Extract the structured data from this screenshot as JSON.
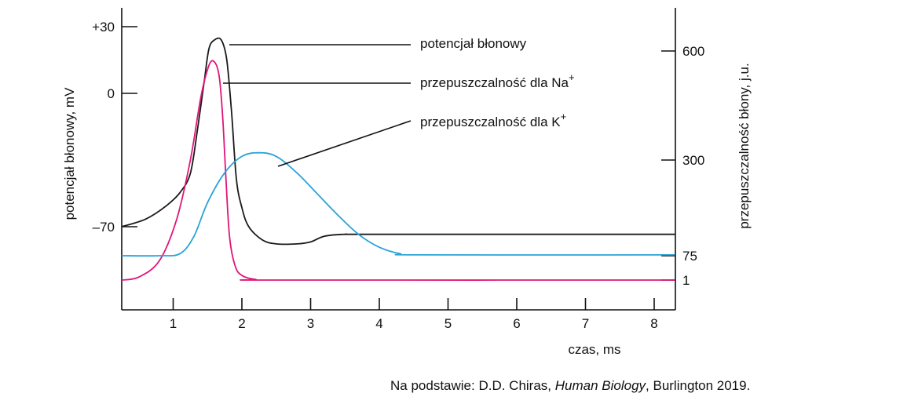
{
  "chart_data": {
    "type": "line",
    "xlabel": "czas, ms",
    "ylabel_left": "potencjał błonowy, mV",
    "ylabel_right": "przepuszczalność błony, j.u.",
    "x_ticks": [
      "1",
      "2",
      "3",
      "4",
      "5",
      "6",
      "7",
      "8"
    ],
    "y_left_ticks": [
      {
        "value": 30,
        "label": "+30"
      },
      {
        "value": 0,
        "label": "0"
      },
      {
        "value": -70,
        "label": "–70"
      }
    ],
    "y_right_ticks": [
      "600",
      "300",
      "75",
      "1"
    ],
    "series": [
      {
        "name": "potencjał błonowy",
        "color": "#1a1a1a",
        "axis": "left",
        "label_text": "potencjał błonowy",
        "points": [
          [
            0.25,
            -70
          ],
          [
            0.6,
            -66
          ],
          [
            0.9,
            -59
          ],
          [
            1.1,
            -52
          ],
          [
            1.25,
            -42
          ],
          [
            1.35,
            -20
          ],
          [
            1.45,
            5
          ],
          [
            1.52,
            20
          ],
          [
            1.6,
            24
          ],
          [
            1.7,
            24
          ],
          [
            1.78,
            15
          ],
          [
            1.85,
            -10
          ],
          [
            1.92,
            -45
          ],
          [
            2.0,
            -60
          ],
          [
            2.1,
            -70
          ],
          [
            2.3,
            -77
          ],
          [
            2.5,
            -79
          ],
          [
            2.8,
            -79
          ],
          [
            3.0,
            -78
          ],
          [
            3.2,
            -75
          ],
          [
            3.5,
            -74
          ],
          [
            4.0,
            -74
          ],
          [
            8.3,
            -74
          ]
        ]
      },
      {
        "name": "przepuszczalność dla Na+",
        "color": "#e0157a",
        "axis": "right",
        "label_text": "przepuszczalność dla Na",
        "label_sup": "+",
        "points": [
          [
            0.25,
            1
          ],
          [
            0.5,
            10
          ],
          [
            0.8,
            60
          ],
          [
            1.05,
            160
          ],
          [
            1.25,
            300
          ],
          [
            1.4,
            470
          ],
          [
            1.52,
            560
          ],
          [
            1.6,
            570
          ],
          [
            1.67,
            530
          ],
          [
            1.72,
            420
          ],
          [
            1.77,
            250
          ],
          [
            1.82,
            120
          ],
          [
            1.9,
            45
          ],
          [
            2.0,
            15
          ],
          [
            2.2,
            3
          ],
          [
            2.5,
            1
          ],
          [
            8.3,
            1
          ]
        ]
      },
      {
        "name": "przepuszczalność dla K+",
        "color": "#2aa3d9",
        "axis": "right",
        "label_text": "przepuszczalność dla K",
        "label_sup": "+",
        "points": [
          [
            0.25,
            75
          ],
          [
            0.8,
            75
          ],
          [
            1.1,
            80
          ],
          [
            1.3,
            120
          ],
          [
            1.5,
            200
          ],
          [
            1.75,
            270
          ],
          [
            2.0,
            310
          ],
          [
            2.25,
            320
          ],
          [
            2.5,
            310
          ],
          [
            2.8,
            270
          ],
          [
            3.1,
            220
          ],
          [
            3.4,
            170
          ],
          [
            3.7,
            125
          ],
          [
            4.0,
            95
          ],
          [
            4.3,
            80
          ],
          [
            4.6,
            77
          ],
          [
            8.3,
            77
          ]
        ]
      }
    ]
  },
  "source": {
    "prefix": "Na podstawie: D.D. Chiras, ",
    "title": "Human Biology",
    "suffix": ", Burlington 2019."
  }
}
